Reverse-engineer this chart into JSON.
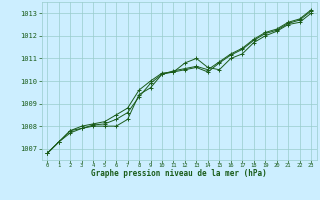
{
  "background_color": "#cceeff",
  "grid_color": "#99cccc",
  "line_color": "#1a5c1a",
  "marker_color": "#1a5c1a",
  "title": "Graphe pression niveau de la mer (hPa)",
  "xlim": [
    -0.5,
    23.5
  ],
  "ylim": [
    1006.5,
    1013.5
  ],
  "yticks": [
    1007,
    1008,
    1009,
    1010,
    1011,
    1012,
    1013
  ],
  "xticks": [
    0,
    1,
    2,
    3,
    4,
    5,
    6,
    7,
    8,
    9,
    10,
    11,
    12,
    13,
    14,
    15,
    16,
    17,
    18,
    19,
    20,
    21,
    22,
    23
  ],
  "series1_x": [
    0,
    1,
    2,
    3,
    4,
    5,
    6,
    7,
    8,
    9,
    10,
    11,
    12,
    13,
    14,
    15,
    16,
    17,
    18,
    19,
    20,
    21,
    22,
    23
  ],
  "series1_y": [
    1006.8,
    1007.3,
    1007.7,
    1007.9,
    1008.0,
    1008.0,
    1008.0,
    1008.3,
    1009.4,
    1009.7,
    1010.3,
    1010.4,
    1010.8,
    1011.0,
    1010.6,
    1010.5,
    1011.0,
    1011.2,
    1011.7,
    1012.0,
    1012.2,
    1012.5,
    1012.6,
    1013.0
  ],
  "series2_x": [
    0,
    1,
    2,
    3,
    4,
    5,
    6,
    7,
    8,
    9,
    10,
    11,
    12,
    13,
    14,
    15,
    16,
    17,
    18,
    19,
    20,
    21,
    22,
    23
  ],
  "series2_y": [
    1006.8,
    1007.3,
    1007.8,
    1008.0,
    1008.1,
    1008.2,
    1008.5,
    1008.8,
    1009.6,
    1010.0,
    1010.35,
    1010.4,
    1010.5,
    1010.6,
    1010.4,
    1010.8,
    1011.15,
    1011.4,
    1011.8,
    1012.1,
    1012.25,
    1012.55,
    1012.7,
    1013.1
  ],
  "series3_x": [
    0,
    1,
    2,
    3,
    4,
    5,
    6,
    7,
    8,
    9,
    10,
    11,
    12,
    13,
    14,
    15,
    16,
    17,
    18,
    19,
    20,
    21,
    22,
    23
  ],
  "series3_y": [
    1006.8,
    1007.3,
    1007.8,
    1007.9,
    1008.05,
    1008.1,
    1008.3,
    1008.6,
    1009.3,
    1009.9,
    1010.3,
    1010.45,
    1010.55,
    1010.65,
    1010.5,
    1010.85,
    1011.2,
    1011.45,
    1011.85,
    1012.15,
    1012.3,
    1012.6,
    1012.75,
    1013.15
  ]
}
